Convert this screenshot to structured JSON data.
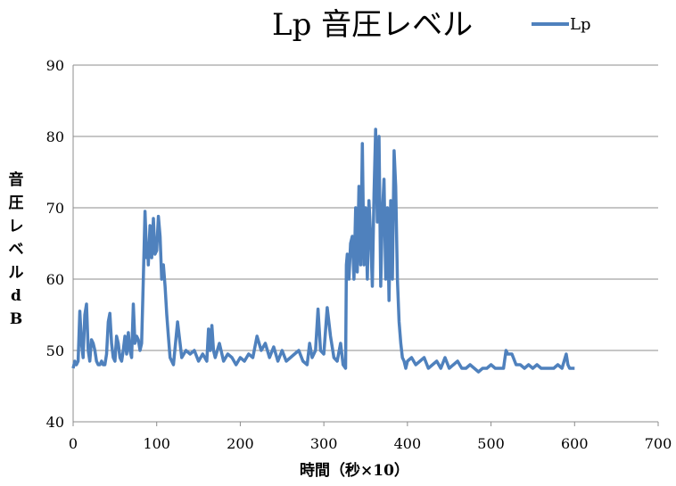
{
  "chart_data": {
    "type": "line",
    "title": "Lp 音圧レベル",
    "xlabel": "時間（秒×10）",
    "ylabel": "音圧レベルdB",
    "xlim": [
      0,
      700
    ],
    "ylim": [
      40,
      90
    ],
    "x_ticks": [
      0,
      100,
      200,
      300,
      400,
      500,
      600,
      700
    ],
    "y_ticks": [
      40,
      50,
      60,
      70,
      80,
      90
    ],
    "grid": "horizontal",
    "legend_position": "top-right",
    "series": [
      {
        "name": "Lp",
        "color": "#4f81bd",
        "x": [
          0,
          2,
          4,
          6,
          8,
          10,
          12,
          14,
          16,
          18,
          20,
          22,
          24,
          26,
          28,
          30,
          32,
          34,
          36,
          38,
          40,
          42,
          44,
          46,
          48,
          50,
          52,
          54,
          56,
          58,
          60,
          62,
          64,
          66,
          68,
          70,
          72,
          74,
          76,
          78,
          80,
          82,
          84,
          86,
          88,
          89,
          90,
          92,
          94,
          96,
          98,
          100,
          102,
          104,
          106,
          108,
          110,
          112,
          114,
          116,
          118,
          120,
          125,
          130,
          135,
          140,
          145,
          150,
          155,
          160,
          162,
          164,
          166,
          168,
          170,
          175,
          180,
          185,
          190,
          195,
          200,
          205,
          210,
          215,
          220,
          225,
          230,
          235,
          240,
          245,
          250,
          255,
          260,
          265,
          270,
          275,
          280,
          283,
          286,
          290,
          293,
          296,
          300,
          304,
          308,
          312,
          316,
          320,
          323,
          326,
          327,
          328,
          330,
          332,
          334,
          336,
          338,
          340,
          342,
          344,
          346,
          348,
          350,
          352,
          354,
          356,
          358,
          360,
          362,
          364,
          366,
          368,
          370,
          372,
          374,
          376,
          378,
          380,
          382,
          384,
          386,
          388,
          390,
          392,
          394,
          396,
          398,
          400,
          405,
          410,
          415,
          420,
          425,
          430,
          435,
          440,
          445,
          450,
          455,
          460,
          465,
          470,
          475,
          480,
          485,
          490,
          495,
          500,
          505,
          510,
          515,
          518,
          520,
          525,
          530,
          535,
          540,
          545,
          550,
          555,
          560,
          565,
          570,
          575,
          580,
          585,
          590,
          592,
          594,
          596,
          598,
          600
        ],
        "values": [
          47.5,
          48.5,
          48,
          48.5,
          55.5,
          51,
          49,
          55,
          56.5,
          50,
          48.5,
          51.5,
          51,
          50,
          48.5,
          48,
          48,
          48.5,
          48,
          48,
          49.5,
          54,
          55.2,
          51,
          49,
          48.5,
          52,
          51,
          49,
          48.5,
          50,
          52,
          49.5,
          52.5,
          50,
          49,
          56.5,
          51,
          52,
          51.5,
          50,
          51,
          60,
          69.5,
          63,
          65,
          62,
          67.5,
          63,
          68.5,
          63.5,
          64,
          68.8,
          66,
          60,
          62,
          59,
          55,
          52,
          49,
          48.5,
          48,
          54,
          49,
          50,
          49.5,
          50,
          48.5,
          49.5,
          48.5,
          53,
          50,
          53.5,
          50,
          49,
          51,
          48.5,
          49.5,
          49,
          48,
          49,
          48.5,
          49.5,
          49,
          52,
          50,
          51,
          49,
          50.5,
          48.5,
          50,
          48.5,
          49,
          49.5,
          50,
          48.5,
          48,
          51,
          49,
          50,
          55.8,
          50,
          49.5,
          56,
          52,
          49,
          48.5,
          51,
          48,
          47.5,
          62,
          63.5,
          60,
          65,
          66,
          60,
          70,
          61,
          73,
          62,
          79,
          62,
          70,
          60,
          71,
          66,
          59,
          72,
          81,
          68,
          80,
          59,
          69,
          74,
          60,
          70,
          57,
          71,
          60,
          78,
          73,
          60,
          54,
          51,
          49,
          48.5,
          47.5,
          48.5,
          49,
          48,
          48.5,
          49,
          47.5,
          48,
          48.5,
          47.5,
          49,
          47.5,
          48,
          48.5,
          47.5,
          47.5,
          48,
          47.5,
          47,
          47.5,
          47.5,
          48,
          47.5,
          47.5,
          47.5,
          50,
          49.5,
          49.5,
          48,
          48,
          47.5,
          48,
          47.5,
          48,
          47.5,
          47.5,
          47.5,
          47.5,
          48,
          47.5,
          49.5,
          48,
          47.5,
          47.5,
          47.5,
          47.5
        ]
      }
    ]
  }
}
